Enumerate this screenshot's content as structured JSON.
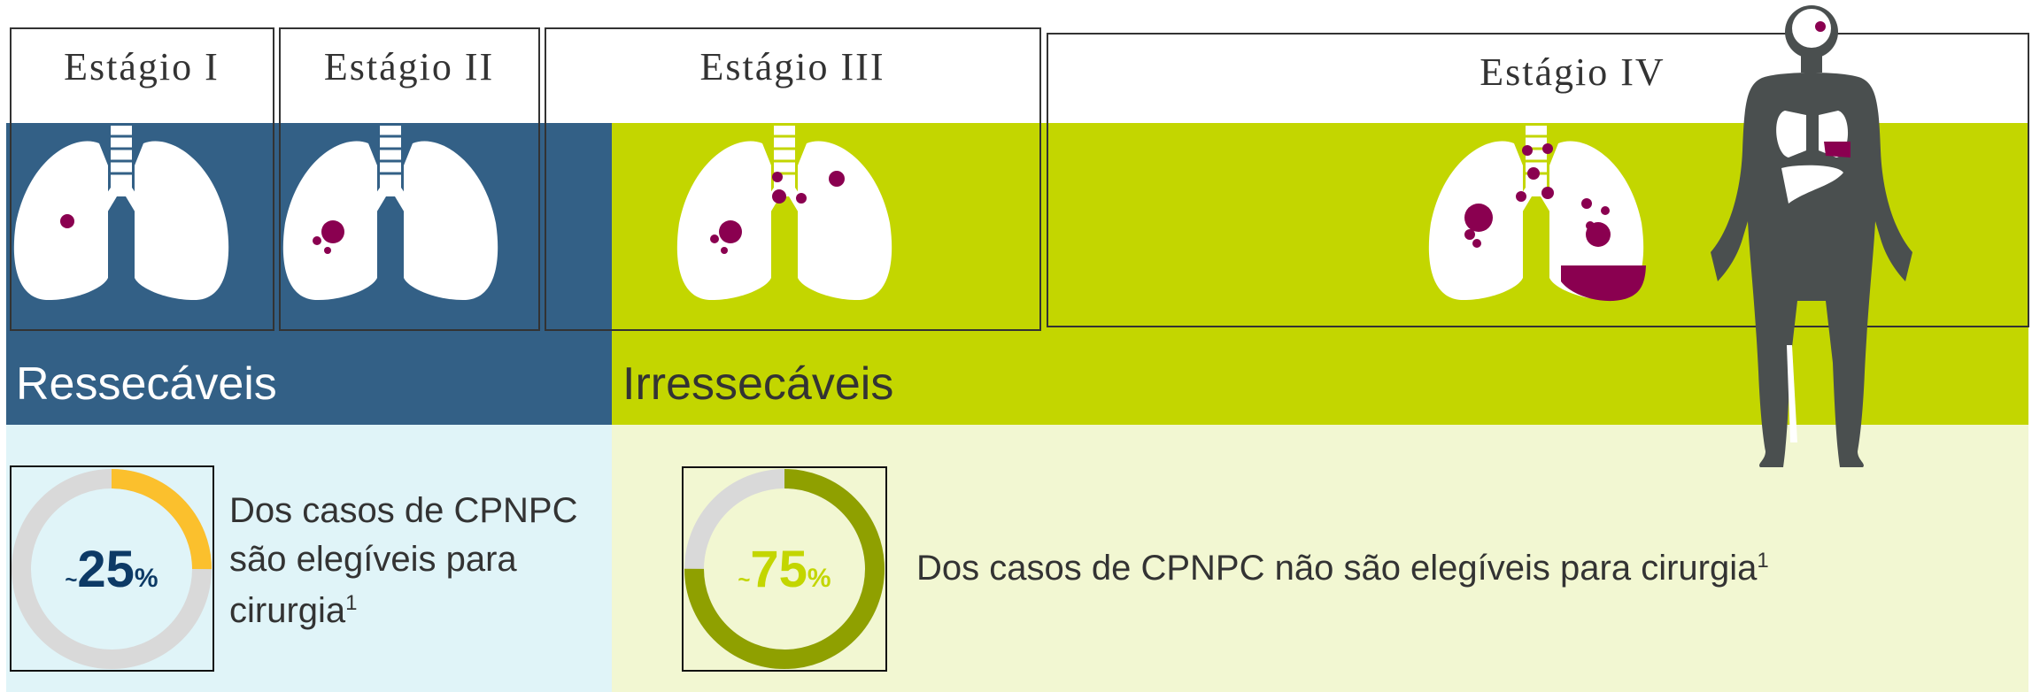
{
  "stages": [
    "Estágio I",
    "Estágio II",
    "Estágio III",
    "Estágio IV"
  ],
  "groups": [
    {
      "label": "Ressecáveis",
      "approx": "~",
      "value": 25,
      "unit": "%",
      "text_lines": [
        "Dos casos de CPNPC",
        "são elegíveis para",
        "cirurgia"
      ],
      "footnote": "1"
    },
    {
      "label": "Irressecáveis",
      "approx": "~",
      "value": 75,
      "unit": "%",
      "text_lines": [
        "Dos casos de CPNPC não são elegíveis para cirurgia"
      ],
      "footnote": "1"
    }
  ]
}
